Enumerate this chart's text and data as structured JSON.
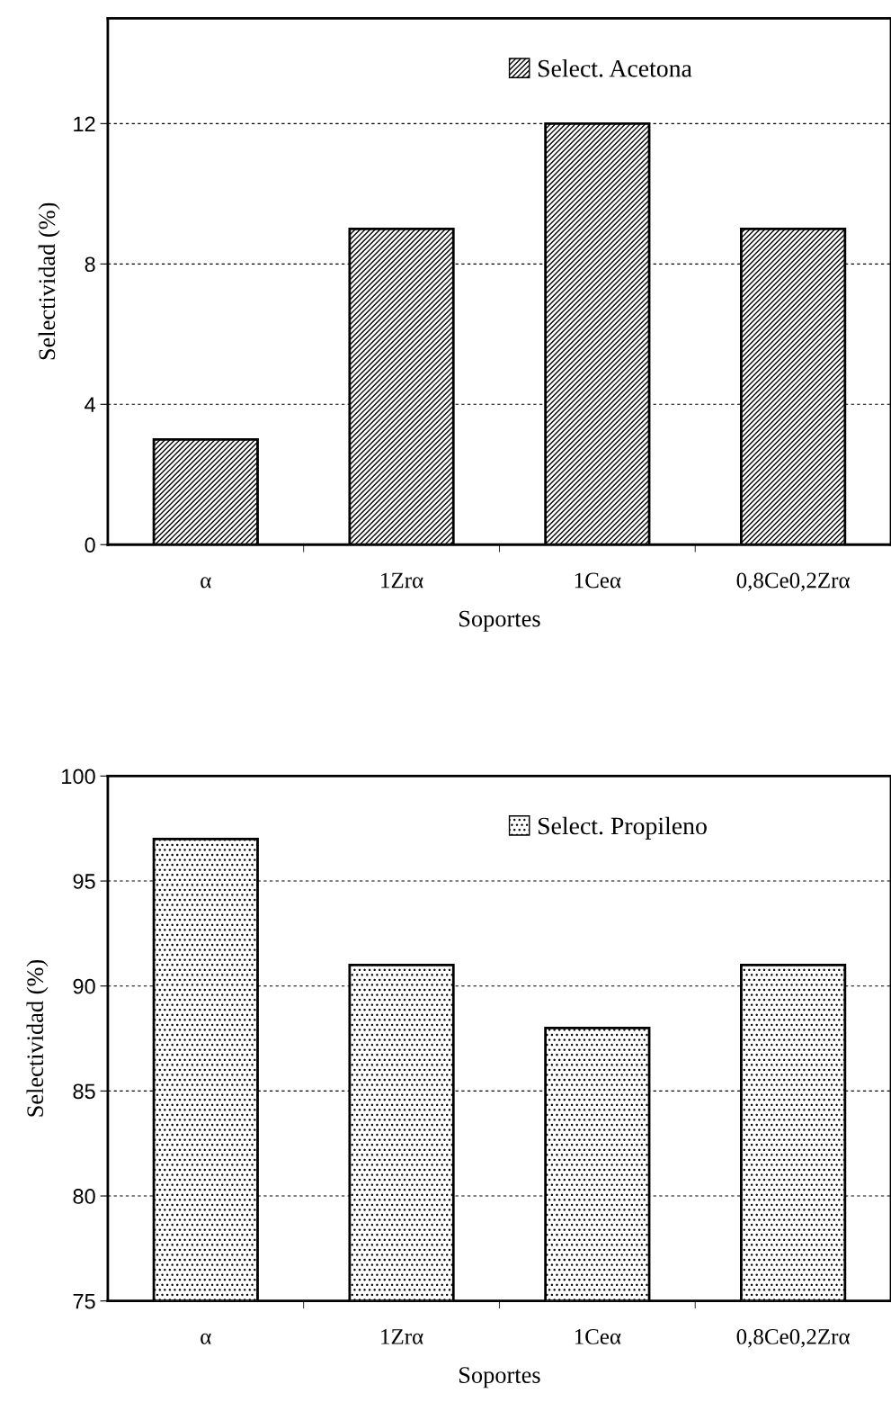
{
  "chart_data": [
    {
      "type": "bar",
      "categories": [
        "α",
        "1Zrα",
        "1Ceα",
        "0,8Ce0,2Zrα"
      ],
      "xlabel": "Soportes",
      "ylabel": "Selectividad (%)",
      "ylim": [
        0,
        15
      ],
      "yticks": [
        0,
        4,
        8,
        12
      ],
      "grid": "y",
      "legend": "top right",
      "series": [
        {
          "name": "Select. Acetona",
          "color": "#000000",
          "values": [
            3,
            9,
            12,
            9
          ]
        }
      ]
    },
    {
      "type": "bar",
      "categories": [
        "α",
        "1Zrα",
        "1Ceα",
        "0,8Ce0,2Zrα"
      ],
      "xlabel": "Soportes",
      "ylabel": "Selectividad (%)",
      "ylim": [
        75,
        100
      ],
      "yticks": [
        75,
        80,
        85,
        90,
        95,
        100
      ],
      "grid": "y",
      "legend": "top right",
      "series": [
        {
          "name": "Select. Propileno",
          "color": "#000000",
          "values": [
            97,
            91,
            88,
            91
          ]
        }
      ]
    }
  ]
}
